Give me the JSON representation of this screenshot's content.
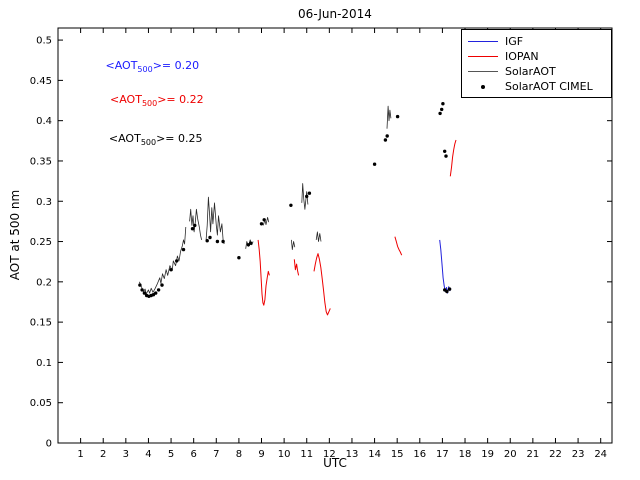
{
  "chart_data": {
    "type": "line",
    "title": "06-Jun-2014",
    "xlabel": "UTC",
    "ylabel": "AOT at 500 nm",
    "xlim": [
      0,
      24.5
    ],
    "ylim": [
      0,
      0.515
    ],
    "xticks": [
      1,
      2,
      3,
      4,
      5,
      6,
      7,
      8,
      9,
      10,
      11,
      12,
      13,
      14,
      15,
      16,
      17,
      18,
      19,
      20,
      21,
      22,
      23,
      24
    ],
    "yticks": [
      0,
      0.05,
      0.1,
      0.15,
      0.2,
      0.25,
      0.3,
      0.35,
      0.4,
      0.45,
      0.5
    ],
    "grid": false,
    "series": [
      {
        "name": "IGF",
        "color": "#2222dd",
        "type": "line",
        "width": 1,
        "segments": [
          [
            [
              16.88,
              0.252
            ],
            [
              16.93,
              0.24
            ],
            [
              16.98,
              0.222
            ],
            [
              17.03,
              0.205
            ],
            [
              17.08,
              0.195
            ],
            [
              17.13,
              0.188
            ],
            [
              17.18,
              0.193
            ],
            [
              17.23,
              0.186
            ],
            [
              17.28,
              0.194
            ],
            [
              17.33,
              0.189
            ],
            [
              17.37,
              0.192
            ]
          ]
        ]
      },
      {
        "name": "IOPAN",
        "color": "#ee0000",
        "type": "line",
        "width": 1,
        "segments": [
          [
            [
              8.85,
              0.252
            ],
            [
              8.9,
              0.24
            ],
            [
              8.94,
              0.225
            ],
            [
              8.98,
              0.205
            ],
            [
              9.02,
              0.185
            ],
            [
              9.06,
              0.174
            ],
            [
              9.1,
              0.171
            ],
            [
              9.15,
              0.178
            ],
            [
              9.2,
              0.195
            ],
            [
              9.25,
              0.205
            ],
            [
              9.3,
              0.213
            ],
            [
              9.35,
              0.208
            ]
          ],
          [
            [
              10.45,
              0.228
            ],
            [
              10.5,
              0.215
            ],
            [
              10.55,
              0.222
            ],
            [
              10.6,
              0.213
            ],
            [
              10.64,
              0.208
            ]
          ],
          [
            [
              11.32,
              0.213
            ],
            [
              11.38,
              0.222
            ],
            [
              11.44,
              0.23
            ],
            [
              11.5,
              0.235
            ],
            [
              11.56,
              0.228
            ],
            [
              11.62,
              0.218
            ],
            [
              11.68,
              0.205
            ],
            [
              11.74,
              0.19
            ],
            [
              11.8,
              0.175
            ],
            [
              11.86,
              0.163
            ],
            [
              11.92,
              0.159
            ],
            [
              11.98,
              0.163
            ],
            [
              12.04,
              0.167
            ]
          ],
          [
            [
              14.9,
              0.256
            ],
            [
              14.96,
              0.25
            ],
            [
              15.02,
              0.244
            ],
            [
              15.08,
              0.24
            ],
            [
              15.14,
              0.237
            ],
            [
              15.2,
              0.233
            ]
          ],
          [
            [
              17.35,
              0.331
            ],
            [
              17.4,
              0.342
            ],
            [
              17.45,
              0.355
            ],
            [
              17.5,
              0.364
            ],
            [
              17.55,
              0.371
            ],
            [
              17.6,
              0.376
            ]
          ]
        ]
      },
      {
        "name": "SolarAOT",
        "color": "#2a2a2a",
        "type": "line",
        "width": 0.8,
        "segments": [
          [
            [
              3.6,
              0.2
            ],
            [
              3.7,
              0.193
            ],
            [
              3.78,
              0.188
            ],
            [
              3.85,
              0.191
            ],
            [
              3.9,
              0.185
            ],
            [
              4.0,
              0.19
            ],
            [
              4.05,
              0.186
            ],
            [
              4.12,
              0.192
            ],
            [
              4.2,
              0.187
            ],
            [
              4.3,
              0.192
            ],
            [
              4.4,
              0.198
            ],
            [
              4.5,
              0.205
            ],
            [
              4.55,
              0.198
            ],
            [
              4.62,
              0.21
            ],
            [
              4.7,
              0.204
            ],
            [
              4.78,
              0.215
            ],
            [
              4.85,
              0.208
            ],
            [
              4.95,
              0.22
            ],
            [
              5.05,
              0.214
            ],
            [
              5.1,
              0.226
            ],
            [
              5.2,
              0.22
            ],
            [
              5.28,
              0.232
            ],
            [
              5.35,
              0.226
            ],
            [
              5.42,
              0.238
            ],
            [
              5.5,
              0.245
            ],
            [
              5.55,
              0.252
            ],
            [
              5.6,
              0.247
            ],
            [
              5.65,
              0.268
            ]
          ],
          [
            [
              5.82,
              0.275
            ],
            [
              5.87,
              0.29
            ],
            [
              5.92,
              0.27
            ],
            [
              5.97,
              0.282
            ],
            [
              6.02,
              0.262
            ],
            [
              6.07,
              0.274
            ],
            [
              6.12,
              0.29
            ],
            [
              6.18,
              0.278
            ],
            [
              6.25,
              0.268
            ],
            [
              6.3,
              0.258
            ],
            [
              6.35,
              0.252
            ]
          ],
          [
            [
              6.55,
              0.252
            ],
            [
              6.6,
              0.27
            ],
            [
              6.65,
              0.305
            ],
            [
              6.7,
              0.285
            ],
            [
              6.75,
              0.262
            ],
            [
              6.8,
              0.292
            ],
            [
              6.85,
              0.272
            ],
            [
              6.92,
              0.298
            ],
            [
              7.0,
              0.27
            ],
            [
              7.05,
              0.258
            ],
            [
              7.1,
              0.282
            ],
            [
              7.18,
              0.262
            ],
            [
              7.25,
              0.272
            ],
            [
              7.3,
              0.252
            ],
            [
              7.35,
              0.247
            ]
          ],
          [
            [
              8.3,
              0.241
            ],
            [
              8.35,
              0.25
            ],
            [
              8.42,
              0.244
            ],
            [
              8.5,
              0.252
            ],
            [
              8.57,
              0.246
            ],
            [
              8.63,
              0.25
            ]
          ],
          [
            [
              9.08,
              0.27
            ],
            [
              9.15,
              0.277
            ],
            [
              9.2,
              0.271
            ],
            [
              9.27,
              0.28
            ],
            [
              9.32,
              0.274
            ]
          ],
          [
            [
              10.32,
              0.252
            ],
            [
              10.36,
              0.24
            ],
            [
              10.42,
              0.25
            ],
            [
              10.47,
              0.243
            ]
          ],
          [
            [
              10.78,
              0.298
            ],
            [
              10.82,
              0.322
            ],
            [
              10.87,
              0.302
            ],
            [
              10.92,
              0.29
            ],
            [
              11.0,
              0.312
            ],
            [
              11.05,
              0.296
            ]
          ],
          [
            [
              11.42,
              0.252
            ],
            [
              11.47,
              0.262
            ],
            [
              11.52,
              0.25
            ],
            [
              11.58,
              0.26
            ],
            [
              11.63,
              0.25
            ]
          ],
          [
            [
              14.55,
              0.39
            ],
            [
              14.6,
              0.418
            ],
            [
              14.64,
              0.4
            ],
            [
              14.68,
              0.413
            ],
            [
              14.72,
              0.403
            ]
          ]
        ]
      },
      {
        "name": "SolarAOT CIMEL",
        "color": "#000000",
        "type": "scatter",
        "points": [
          [
            3.62,
            0.196
          ],
          [
            3.72,
            0.19
          ],
          [
            3.82,
            0.186
          ],
          [
            3.92,
            0.183
          ],
          [
            4.02,
            0.182
          ],
          [
            4.12,
            0.183
          ],
          [
            4.22,
            0.184
          ],
          [
            4.32,
            0.186
          ],
          [
            4.45,
            0.19
          ],
          [
            4.6,
            0.196
          ],
          [
            5.0,
            0.215
          ],
          [
            5.25,
            0.226
          ],
          [
            5.55,
            0.24
          ],
          [
            5.95,
            0.266
          ],
          [
            6.05,
            0.27
          ],
          [
            6.6,
            0.251
          ],
          [
            6.72,
            0.255
          ],
          [
            7.05,
            0.25
          ],
          [
            7.3,
            0.25
          ],
          [
            8.0,
            0.23
          ],
          [
            8.42,
            0.246
          ],
          [
            8.52,
            0.248
          ],
          [
            9.0,
            0.272
          ],
          [
            9.12,
            0.277
          ],
          [
            10.3,
            0.295
          ],
          [
            11.0,
            0.306
          ],
          [
            11.12,
            0.31
          ],
          [
            14.0,
            0.346
          ],
          [
            14.48,
            0.376
          ],
          [
            14.56,
            0.381
          ],
          [
            15.02,
            0.405
          ],
          [
            16.9,
            0.409
          ],
          [
            16.97,
            0.414
          ],
          [
            17.02,
            0.421
          ],
          [
            17.1,
            0.362
          ],
          [
            17.16,
            0.356
          ],
          [
            17.1,
            0.19
          ],
          [
            17.2,
            0.188
          ],
          [
            17.32,
            0.191
          ]
        ]
      }
    ],
    "annotations": [
      {
        "pre": "<AOT",
        "sub": "500",
        "post": ">= 0.20",
        "color": "#1a1aff",
        "x": 2.1,
        "y": 0.467
      },
      {
        "pre": "<AOT",
        "sub": "500",
        "post": ">= 0.22",
        "color": "#ee0000",
        "x": 2.3,
        "y": 0.424
      },
      {
        "pre": "<AOT",
        "sub": "500",
        "post": ">= 0.25",
        "color": "#000000",
        "x": 2.25,
        "y": 0.376
      }
    ],
    "legend": {
      "position": "top-right",
      "entries": [
        {
          "label": "IGF",
          "color": "#2222dd",
          "marker": "line"
        },
        {
          "label": "IOPAN",
          "color": "#ee0000",
          "marker": "line"
        },
        {
          "label": "SolarAOT",
          "color": "#555555",
          "marker": "line"
        },
        {
          "label": "SolarAOT CIMEL",
          "color": "#000000",
          "marker": "dot"
        }
      ]
    }
  }
}
